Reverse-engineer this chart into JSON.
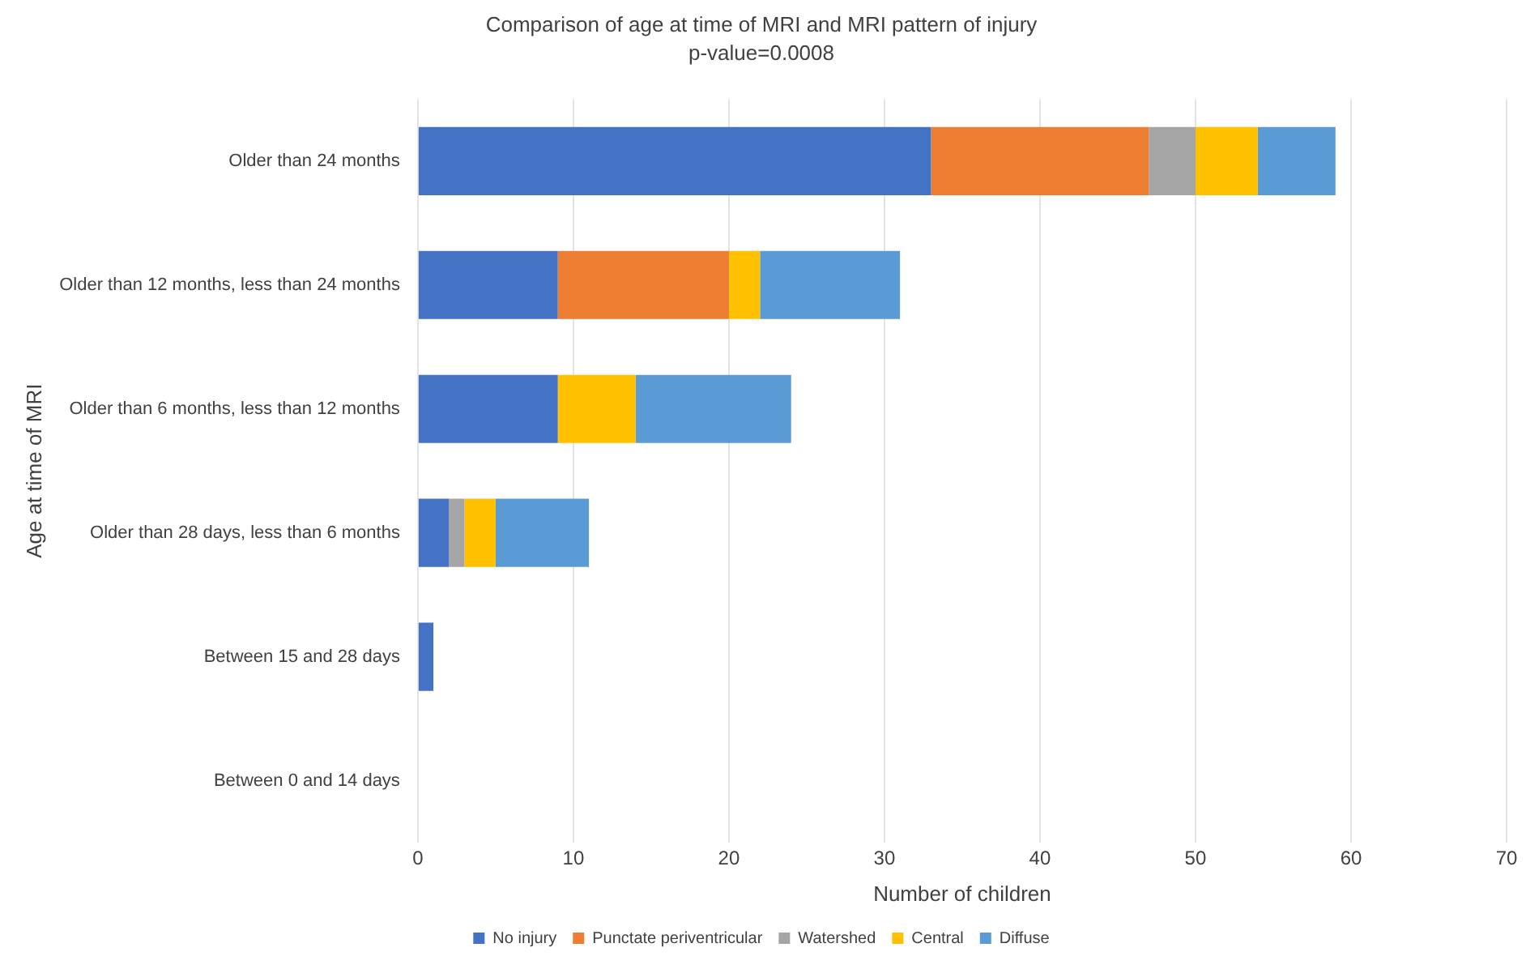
{
  "chart_data": {
    "type": "bar",
    "orientation": "horizontal",
    "stacked": true,
    "title": "Comparison of age at time of MRI and MRI pattern of injury",
    "subtitle": "p-value=0.0008",
    "xlabel": "Number of children",
    "ylabel": "Age at time of MRI",
    "categories": [
      "Older than 24 months",
      "Older than 12 months, less than 24 months",
      "Older than 6 months, less than 12 months",
      "Older than 28 days, less than 6 months",
      "Between 15 and 28 days",
      "Between 0 and 14 days"
    ],
    "series": [
      {
        "name": "No injury",
        "color": "#4472c4",
        "values": [
          33,
          9,
          9,
          2,
          1,
          0
        ]
      },
      {
        "name": "Punctate periventricular",
        "color": "#ed7d31",
        "values": [
          14,
          11,
          0,
          0,
          0,
          0
        ]
      },
      {
        "name": "Watershed",
        "color": "#a5a5a5",
        "values": [
          3,
          0,
          0,
          1,
          0,
          0
        ]
      },
      {
        "name": "Central",
        "color": "#ffc000",
        "values": [
          4,
          2,
          5,
          2,
          0,
          0
        ]
      },
      {
        "name": "Diffuse",
        "color": "#5b9bd5",
        "values": [
          5,
          9,
          10,
          6,
          0,
          0
        ]
      }
    ],
    "xlim": [
      0,
      70
    ],
    "xticks": [
      0,
      10,
      20,
      30,
      40,
      50,
      60,
      70
    ],
    "grid": "x",
    "legend": "bottom"
  }
}
